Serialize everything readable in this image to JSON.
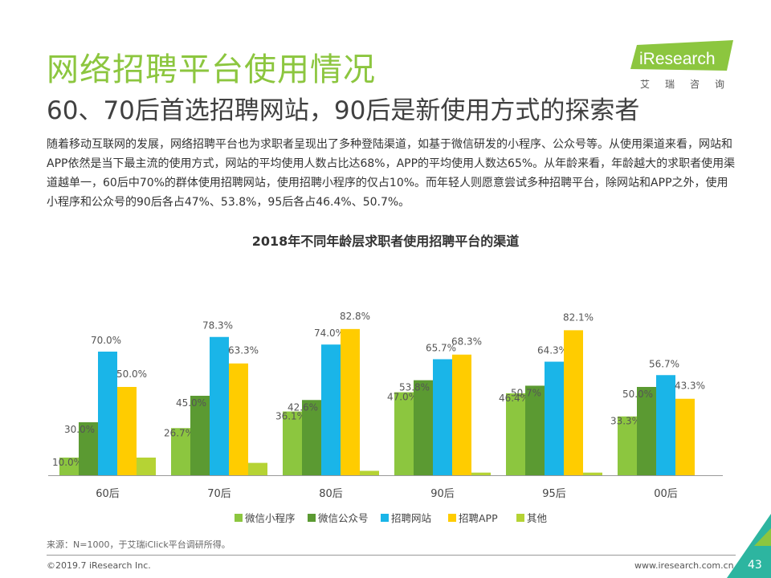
{
  "header": {
    "title": "网络招聘平台使用情况",
    "subtitle": "60、70后首选招聘网站，90后是新使用方式的探索者"
  },
  "logo": {
    "name": "iResearch",
    "cn": "艾瑞咨询"
  },
  "body_text": "随着移动互联网的发展，网络招聘平台也为求职者呈现出了多种登陆渠道，如基于微信研发的小程序、公众号等。从使用渠道来看，网站和APP依然是当下最主流的使用方式，网站的平均使用人数占比达68%，APP的平均使用人数达65%。从年龄来看，年龄越大的求职者使用渠道越单一，60后中70%的群体使用招聘网站，使用招聘小程序的仅占10%。而年轻人则愿意尝试多种招聘平台，除网站和APP之外，使用小程序和公众号的90后各占47%、53.8%，95后各占46.4%、50.7%。",
  "chart_data": {
    "type": "bar",
    "title": "2018年不同年龄层求职者使用招聘平台的渠道",
    "categories": [
      "60后",
      "70后",
      "80后",
      "90后",
      "95后",
      "00后"
    ],
    "ylim": [
      0,
      100
    ],
    "grid": false,
    "legend_position": "bottom",
    "series": [
      {
        "name": "微信小程序",
        "color": "#8cc63f",
        "values": [
          10.0,
          26.7,
          36.1,
          47.0,
          46.4,
          33.3
        ],
        "labels": [
          "10.0%",
          "26.7%",
          "36.1%",
          "47.0%",
          "46.4%",
          "33.3%"
        ]
      },
      {
        "name": "微信公众号",
        "color": "#5b9a32",
        "values": [
          30.0,
          45.0,
          42.6,
          53.8,
          50.7,
          50.0
        ],
        "labels": [
          "30.0%",
          "45.0%",
          "42.6%",
          "53.8%",
          "50.7%",
          "50.0%"
        ]
      },
      {
        "name": "招聘网站",
        "color": "#1ab5e8",
        "values": [
          70.0,
          78.3,
          74.0,
          65.7,
          64.3,
          56.7
        ],
        "labels": [
          "70.0%",
          "78.3%",
          "74.0%",
          "65.7%",
          "64.3%",
          "56.7%"
        ]
      },
      {
        "name": "招聘APP",
        "color": "#ffcc00",
        "values": [
          50.0,
          63.3,
          82.8,
          68.3,
          82.1,
          43.3
        ],
        "labels": [
          "50.0%",
          "63.3%",
          "82.8%",
          "68.3%",
          "82.1%",
          "43.3%"
        ]
      },
      {
        "name": "其他",
        "color": "#b5d334",
        "values": [
          10.0,
          7.0,
          2.5,
          1.5,
          1.5,
          null
        ],
        "labels": [
          null,
          null,
          null,
          null,
          null,
          null
        ]
      }
    ]
  },
  "source": "来源：N=1000，于艾瑞iClick平台调研所得。",
  "footer": {
    "copyright": "©2019.7 iResearch Inc.",
    "website": "www.iresearch.com.cn",
    "page": "43"
  },
  "colors": {
    "accent_green": "#8cc63f",
    "corner_teal": "#2db5a0"
  }
}
